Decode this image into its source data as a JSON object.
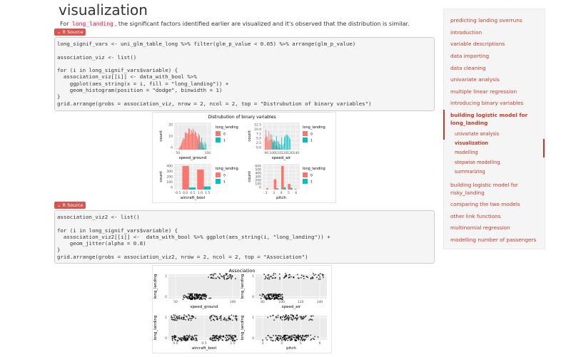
{
  "page": {
    "title": "visualization",
    "intro_pre": "For ",
    "intro_code": "long_landing",
    "intro_post": ", the significant factors identified earlier are visualized and it's observed that the distribution is similar."
  },
  "source_button_label": "R Source",
  "code1": {
    "l1": "long_signif_vars <- uni_glm_table_long %>% filter(glm_p_value < 0.05) %>% arrange(glm_p_value)",
    "l2": "association_viz <- list()",
    "l3": "for (i in long_signif_vars$variable) {",
    "l4": "  association_viz[[i]] <- data_with_bool %>%",
    "l5": "    ggplot(aes_string(x = i, fill = \"long_landing\")) +",
    "l6": "    geom_histogram(position = \"dodge\", binwidth = 1)",
    "l7": "}",
    "l8": "grid.arrange(grobs = association_viz, nrow = 2, ncol = 2, top = \"Distrubution of binary variables\")"
  },
  "code2": {
    "l1": "association_viz2 <- list()",
    "l2": "for (i in long_signif_vars$variable) {",
    "l3": "  association_viz2[[i]] <-  data_with_bool %>% ggplot(aes_string(i, \"long_landing\")) +",
    "l4": "    geom_jitter(alpha = 0.8)",
    "l5": "}",
    "l6": "grid.arrange(grobs = association_viz2, nrow = 2, ncol = 2, top = \"Association\")"
  },
  "fig1": {
    "title": "Distrubution of binary variables",
    "legend_title": "long_landing",
    "legend_0": "0",
    "legend_1": "1",
    "ylabel": "count",
    "color_0": "#F8766D",
    "color_1": "#00BFC4",
    "p1": {
      "xlabel": "speed_ground",
      "xticks": [
        "50",
        "100"
      ],
      "yticks": [
        "0",
        "10",
        "20"
      ]
    },
    "p2": {
      "xlabel": "speed_air",
      "xticks": [
        "90",
        "100",
        "110",
        "120",
        "130",
        "140"
      ],
      "yticks": [
        "0.0",
        "2.5",
        "5.0",
        "7.5",
        "10.0",
        "12.5"
      ]
    },
    "p3": {
      "xlabel": "aircraft_bool",
      "xticks": [
        "-0.5",
        "0.0",
        "0.5",
        "1.0",
        "1.5"
      ],
      "yticks": [
        "0",
        "100",
        "200",
        "300",
        "400"
      ]
    },
    "p4": {
      "xlabel": "pitch",
      "xticks": [
        "2",
        "3",
        "4",
        "5",
        "6"
      ],
      "yticks": [
        "0",
        "100",
        "200",
        "300",
        "400",
        "500",
        "600"
      ]
    }
  },
  "fig2": {
    "title": "Association",
    "ylabel": "long_landing",
    "yticks": [
      "0",
      "1"
    ],
    "p1": {
      "xlabel": "speed_ground",
      "xticks": [
        "50",
        "100"
      ]
    },
    "p2": {
      "xlabel": "speed_air",
      "xticks": [
        "80",
        "100",
        "120",
        "140"
      ]
    },
    "p3": {
      "xlabel": "aircraft_bool",
      "xticks": [
        "0.0",
        "0.5",
        "1.0"
      ]
    },
    "p4": {
      "xlabel": "pitch",
      "xticks": [
        "3",
        "4",
        "5",
        "6"
      ]
    }
  },
  "toc": {
    "items": [
      "predicting landing overruns",
      "introduction",
      "variable descriptions",
      "data importing",
      "data cleaning",
      "univariate analysis",
      "multiple linear regression",
      "introducing binary variables",
      "building logistic model for",
      "long_landing",
      "univariate analysis",
      "visualization",
      "modelling",
      "stepwise modelling",
      "summarizing",
      "building logistic model for",
      "risky_landing",
      "comparing the two models",
      "other link functions",
      "multinomial regression",
      "modelling number of passengers"
    ]
  }
}
